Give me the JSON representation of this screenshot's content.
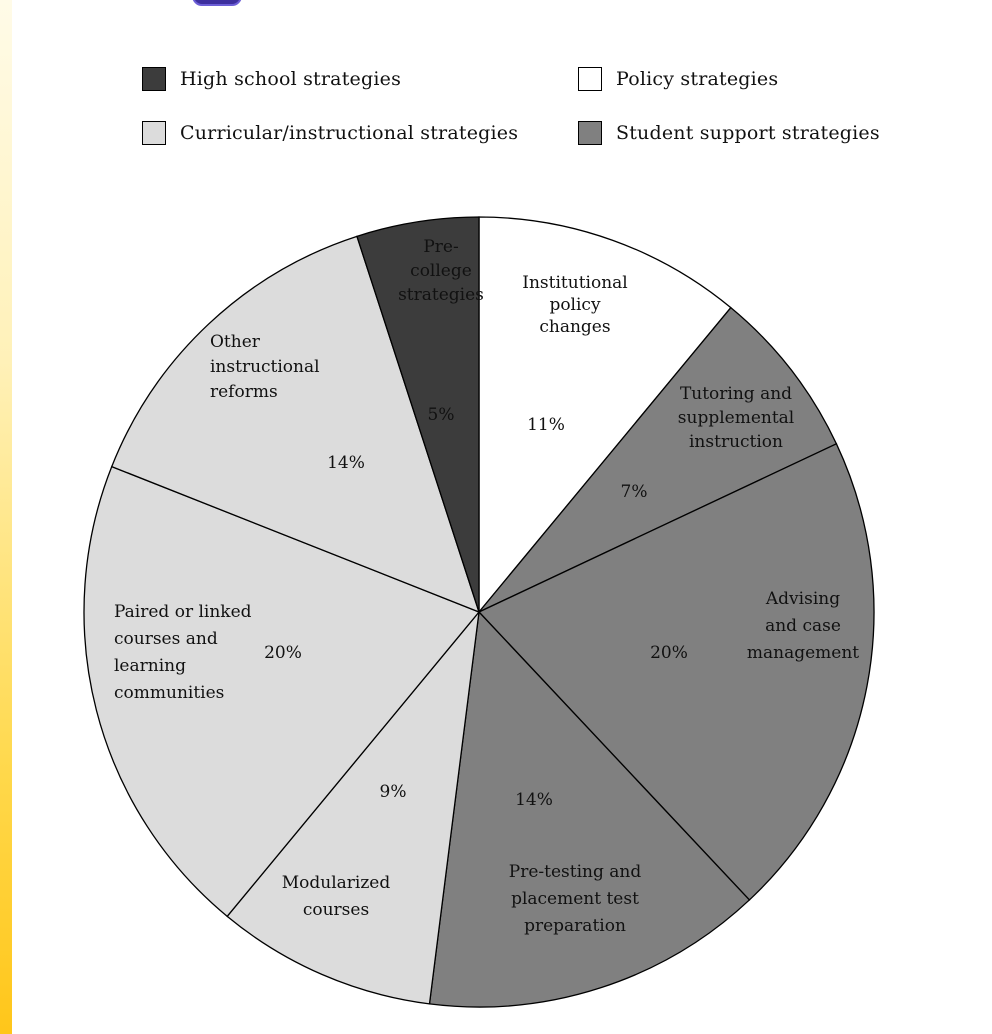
{
  "legend": [
    {
      "label": "High school strategies",
      "color": "#3c3c3c"
    },
    {
      "label": "Policy strategies",
      "color": "#ffffff"
    },
    {
      "label": "Curricular/instructional strategies",
      "color": "#dcdcdc"
    },
    {
      "label": "Student support strategies",
      "color": "#808080"
    }
  ],
  "chart_data": {
    "type": "pie",
    "title": "",
    "start_angle_deg": 0,
    "direction": "clockwise",
    "slices": [
      {
        "label_lines": [
          "Institutional",
          "policy",
          "changes"
        ],
        "value": 11,
        "value_label": "11%",
        "group": "Policy strategies",
        "color": "#ffffff"
      },
      {
        "label_lines": [
          "Tutoring and",
          "supplemental",
          "instruction"
        ],
        "value": 7,
        "value_label": "7%",
        "group": "Student support strategies",
        "color": "#808080"
      },
      {
        "label_lines": [
          "Advising",
          "and case",
          "management"
        ],
        "value": 20,
        "value_label": "20%",
        "group": "Student support strategies",
        "color": "#808080"
      },
      {
        "label_lines": [
          "Pre-testing and",
          "placement test",
          "preparation"
        ],
        "value": 14,
        "value_label": "14%",
        "group": "Student support strategies",
        "color": "#808080"
      },
      {
        "label_lines": [
          "Modularized",
          "courses"
        ],
        "value": 9,
        "value_label": "9%",
        "group": "Curricular/instructional strategies",
        "color": "#dcdcdc"
      },
      {
        "label_lines": [
          "Paired or linked",
          "courses and",
          "learning",
          "communities"
        ],
        "value": 20,
        "value_label": "20%",
        "group": "Curricular/instructional strategies",
        "color": "#dcdcdc"
      },
      {
        "label_lines": [
          "Other",
          "instructional",
          "reforms"
        ],
        "value": 14,
        "value_label": "14%",
        "group": "Curricular/instructional strategies",
        "color": "#dcdcdc"
      },
      {
        "label_lines": [
          "Pre-",
          "college",
          "strategies"
        ],
        "value": 5,
        "value_label": "5%",
        "group": "High school strategies",
        "color": "#3c3c3c"
      }
    ]
  }
}
